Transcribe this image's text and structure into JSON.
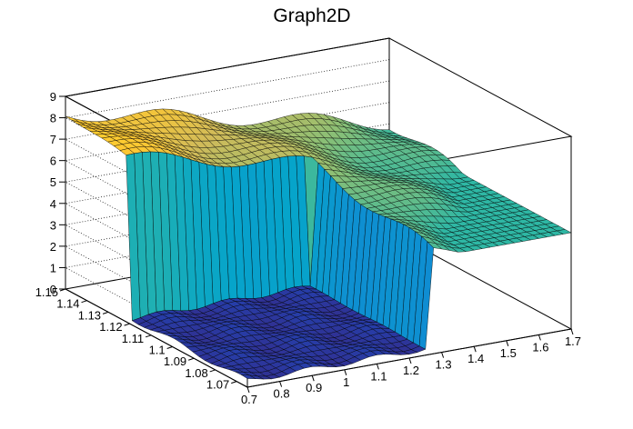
{
  "chart_data": {
    "type": "surface",
    "title": "Graph2D",
    "x_ticks": [
      "0.7",
      "0.8",
      "0.9",
      "1",
      "1.1",
      "1.2",
      "1.3",
      "1.4",
      "1.5",
      "1.6",
      "1.7"
    ],
    "y_ticks": [
      "1.07",
      "1.08",
      "1.09",
      "1.1",
      "1.11",
      "1.12",
      "1.13",
      "1.14",
      "1.15"
    ],
    "z_ticks": [
      "0",
      "1",
      "2",
      "3",
      "4",
      "5",
      "6",
      "7",
      "8",
      "9"
    ],
    "xlim": [
      0.7,
      1.7
    ],
    "ylim": [
      1.065,
      1.15
    ],
    "zlim": [
      0,
      9
    ],
    "grid": true,
    "palette": [
      "#352a87",
      "#0f5cdd",
      "#1481d6",
      "#06a4ca",
      "#2eb7a4",
      "#87bf77",
      "#d1bb59",
      "#fec832",
      "#f9fb0e"
    ],
    "surface_edge_color": "#000000",
    "low_plateau": {
      "z": 0.3,
      "x_range": [
        0.7,
        1.25
      ],
      "y_range": [
        1.065,
        1.12
      ]
    },
    "high_plateau_z": [
      6.2,
      8.2
    ],
    "rim_z_range": [
      4.5,
      5.2
    ]
  }
}
